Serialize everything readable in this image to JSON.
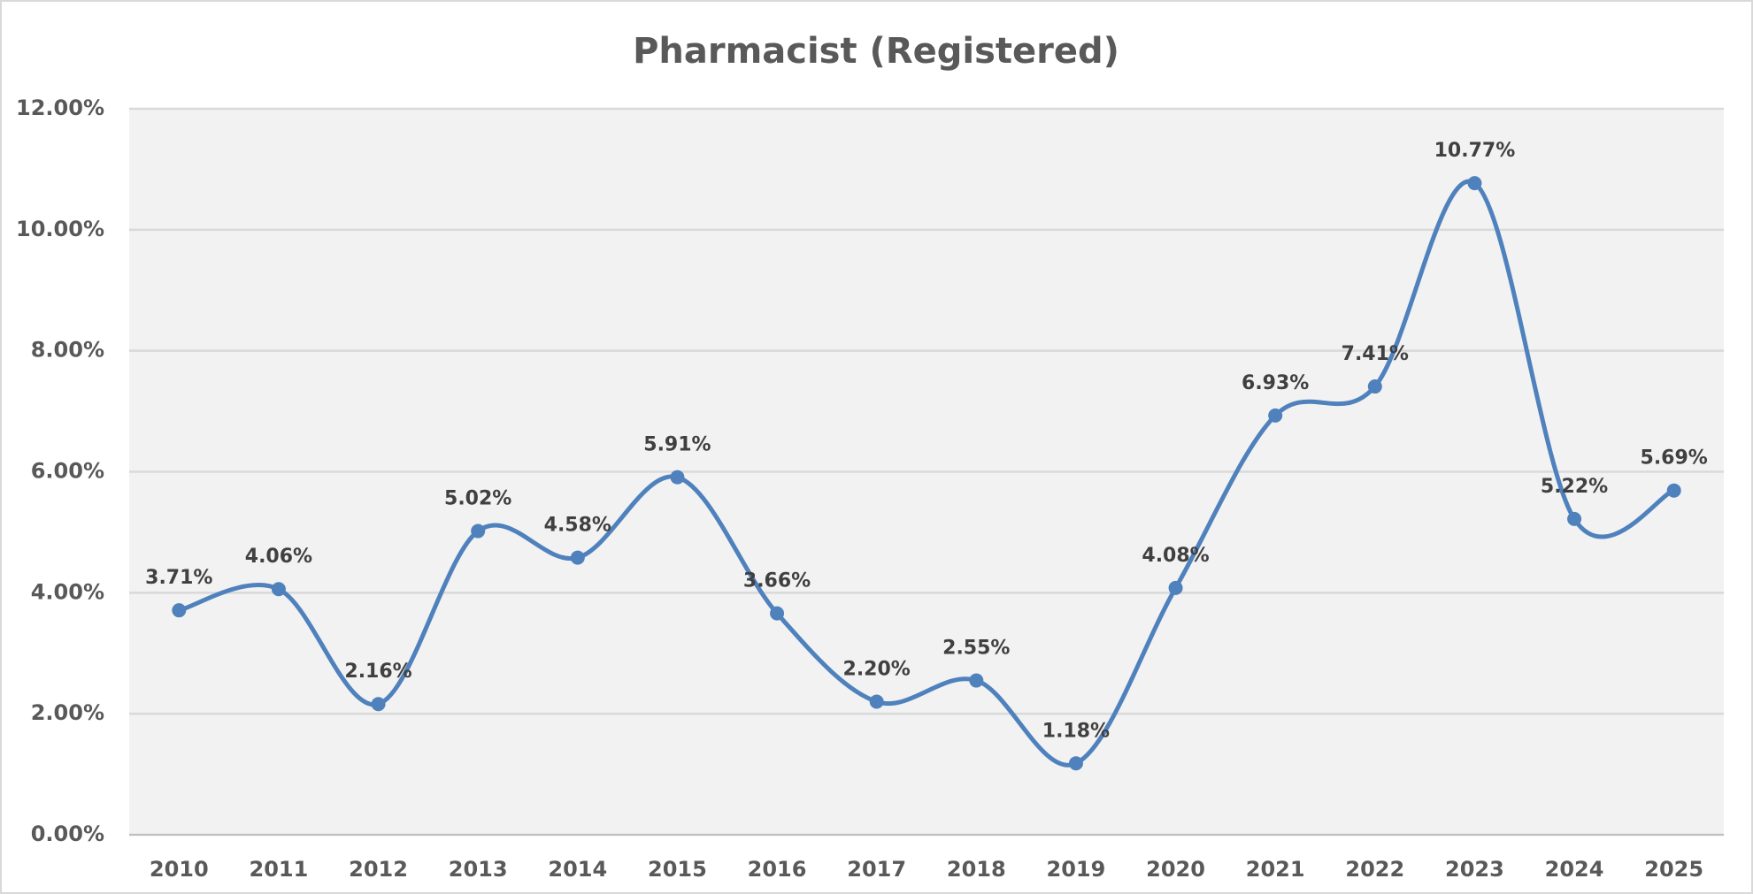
{
  "chart_data": {
    "type": "line",
    "title": "Pharmacist (Registered)",
    "categories": [
      "2010",
      "2011",
      "2012",
      "2013",
      "2014",
      "2015",
      "2016",
      "2017",
      "2018",
      "2019",
      "2020",
      "2021",
      "2022",
      "2023",
      "2024",
      "2025"
    ],
    "series": [
      {
        "name": "Pharmacist (Registered)",
        "color": "#4f81bd",
        "values": [
          3.71,
          4.06,
          2.16,
          5.02,
          4.58,
          5.91,
          3.66,
          2.2,
          2.55,
          1.18,
          4.08,
          6.93,
          7.41,
          10.77,
          5.22,
          5.69
        ],
        "value_labels": [
          "3.71%",
          "4.06%",
          "2.16%",
          "5.02%",
          "4.58%",
          "5.91%",
          "3.66%",
          "2.20%",
          "2.55%",
          "1.18%",
          "4.08%",
          "6.93%",
          "7.41%",
          "10.77%",
          "5.22%",
          "5.69%"
        ]
      }
    ],
    "ylim": [
      0,
      12
    ],
    "yticks": [
      {
        "value": 0,
        "label": "0.00%"
      },
      {
        "value": 2,
        "label": "2.00%"
      },
      {
        "value": 4,
        "label": "4.00%"
      },
      {
        "value": 6,
        "label": "6.00%"
      },
      {
        "value": 8,
        "label": "8.00%"
      },
      {
        "value": 10,
        "label": "10.00%"
      },
      {
        "value": 12,
        "label": "12.00%"
      }
    ],
    "grid": true,
    "smooth": true
  }
}
